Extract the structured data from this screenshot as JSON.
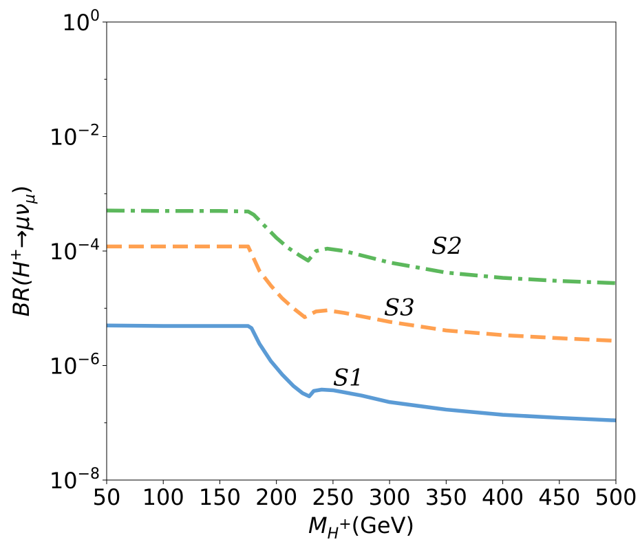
{
  "chart_data": {
    "type": "line",
    "xlabel": {
      "main": "M",
      "sub": "H",
      "sup": "+",
      "unit": "(GeV)"
    },
    "ylabel": {
      "prefix": "BR(H",
      "sup": "+",
      "arrow": "→",
      "mu": "μν",
      "sub": "μ",
      "suffix": ")"
    },
    "xlim": [
      50,
      500
    ],
    "ylim": [
      1e-08,
      1
    ],
    "yscale": "log",
    "grid": false,
    "x_ticks": [
      "50",
      "100",
      "150",
      "200",
      "250",
      "300",
      "350",
      "400",
      "450",
      "500"
    ],
    "y_ticks": [
      {
        "base": "10",
        "exp": "−8",
        "value": 1e-08
      },
      {
        "base": "10",
        "exp": "−6",
        "value": 1e-06
      },
      {
        "base": "10",
        "exp": "−4",
        "value": 0.0001
      },
      {
        "base": "10",
        "exp": "−2",
        "value": 0.01
      },
      {
        "base": "10",
        "exp": "0",
        "value": 1
      }
    ],
    "series": [
      {
        "name": "S1",
        "color": "#5b9bd5",
        "style": "solid",
        "label_pos": {
          "x": 250,
          "y": 4.5e-07
        },
        "points": [
          [
            50,
            5e-06
          ],
          [
            100,
            4.9e-06
          ],
          [
            150,
            4.9e-06
          ],
          [
            175,
            4.9e-06
          ],
          [
            178,
            4.5e-06
          ],
          [
            185,
            2.4e-06
          ],
          [
            195,
            1.2e-06
          ],
          [
            205,
            7e-07
          ],
          [
            215,
            4.4e-07
          ],
          [
            223,
            3.3e-07
          ],
          [
            229,
            2.9e-07
          ],
          [
            233,
            3.6e-07
          ],
          [
            240,
            3.8e-07
          ],
          [
            250,
            3.7e-07
          ],
          [
            275,
            3e-07
          ],
          [
            300,
            2.3e-07
          ],
          [
            350,
            1.7e-07
          ],
          [
            400,
            1.38e-07
          ],
          [
            450,
            1.22e-07
          ],
          [
            500,
            1.1e-07
          ]
        ]
      },
      {
        "name": "S2",
        "color": "#5cb85c",
        "style": "dashdot",
        "label_pos": {
          "x": 337,
          "y": 9e-05
        },
        "points": [
          [
            50,
            0.00051
          ],
          [
            100,
            0.0005
          ],
          [
            150,
            0.0005
          ],
          [
            175,
            0.00049
          ],
          [
            180,
            0.00043
          ],
          [
            190,
            0.00027
          ],
          [
            200,
            0.00017
          ],
          [
            210,
            0.000115
          ],
          [
            220,
            8.5e-05
          ],
          [
            228,
            6.8e-05
          ],
          [
            235,
            0.0001
          ],
          [
            245,
            0.00011
          ],
          [
            260,
            0.0001
          ],
          [
            300,
            6.3e-05
          ],
          [
            350,
            4.2e-05
          ],
          [
            400,
            3.4e-05
          ],
          [
            450,
            3e-05
          ],
          [
            500,
            2.75e-05
          ]
        ]
      },
      {
        "name": "S3",
        "color": "#ffa050",
        "style": "dashed",
        "label_pos": {
          "x": 295,
          "y": 7.5e-06
        },
        "points": [
          [
            50,
            0.00012
          ],
          [
            100,
            0.00012
          ],
          [
            150,
            0.00012
          ],
          [
            175,
            0.00012
          ],
          [
            178,
            9e-05
          ],
          [
            185,
            4.5e-05
          ],
          [
            195,
            2.5e-05
          ],
          [
            205,
            1.5e-05
          ],
          [
            215,
            1e-05
          ],
          [
            225,
            7e-06
          ],
          [
            235,
            8.8e-06
          ],
          [
            245,
            9.2e-06
          ],
          [
            260,
            8.3e-06
          ],
          [
            300,
            5.8e-06
          ],
          [
            350,
            4.1e-06
          ],
          [
            400,
            3.4e-06
          ],
          [
            450,
            3e-06
          ],
          [
            500,
            2.7e-06
          ]
        ]
      }
    ]
  }
}
